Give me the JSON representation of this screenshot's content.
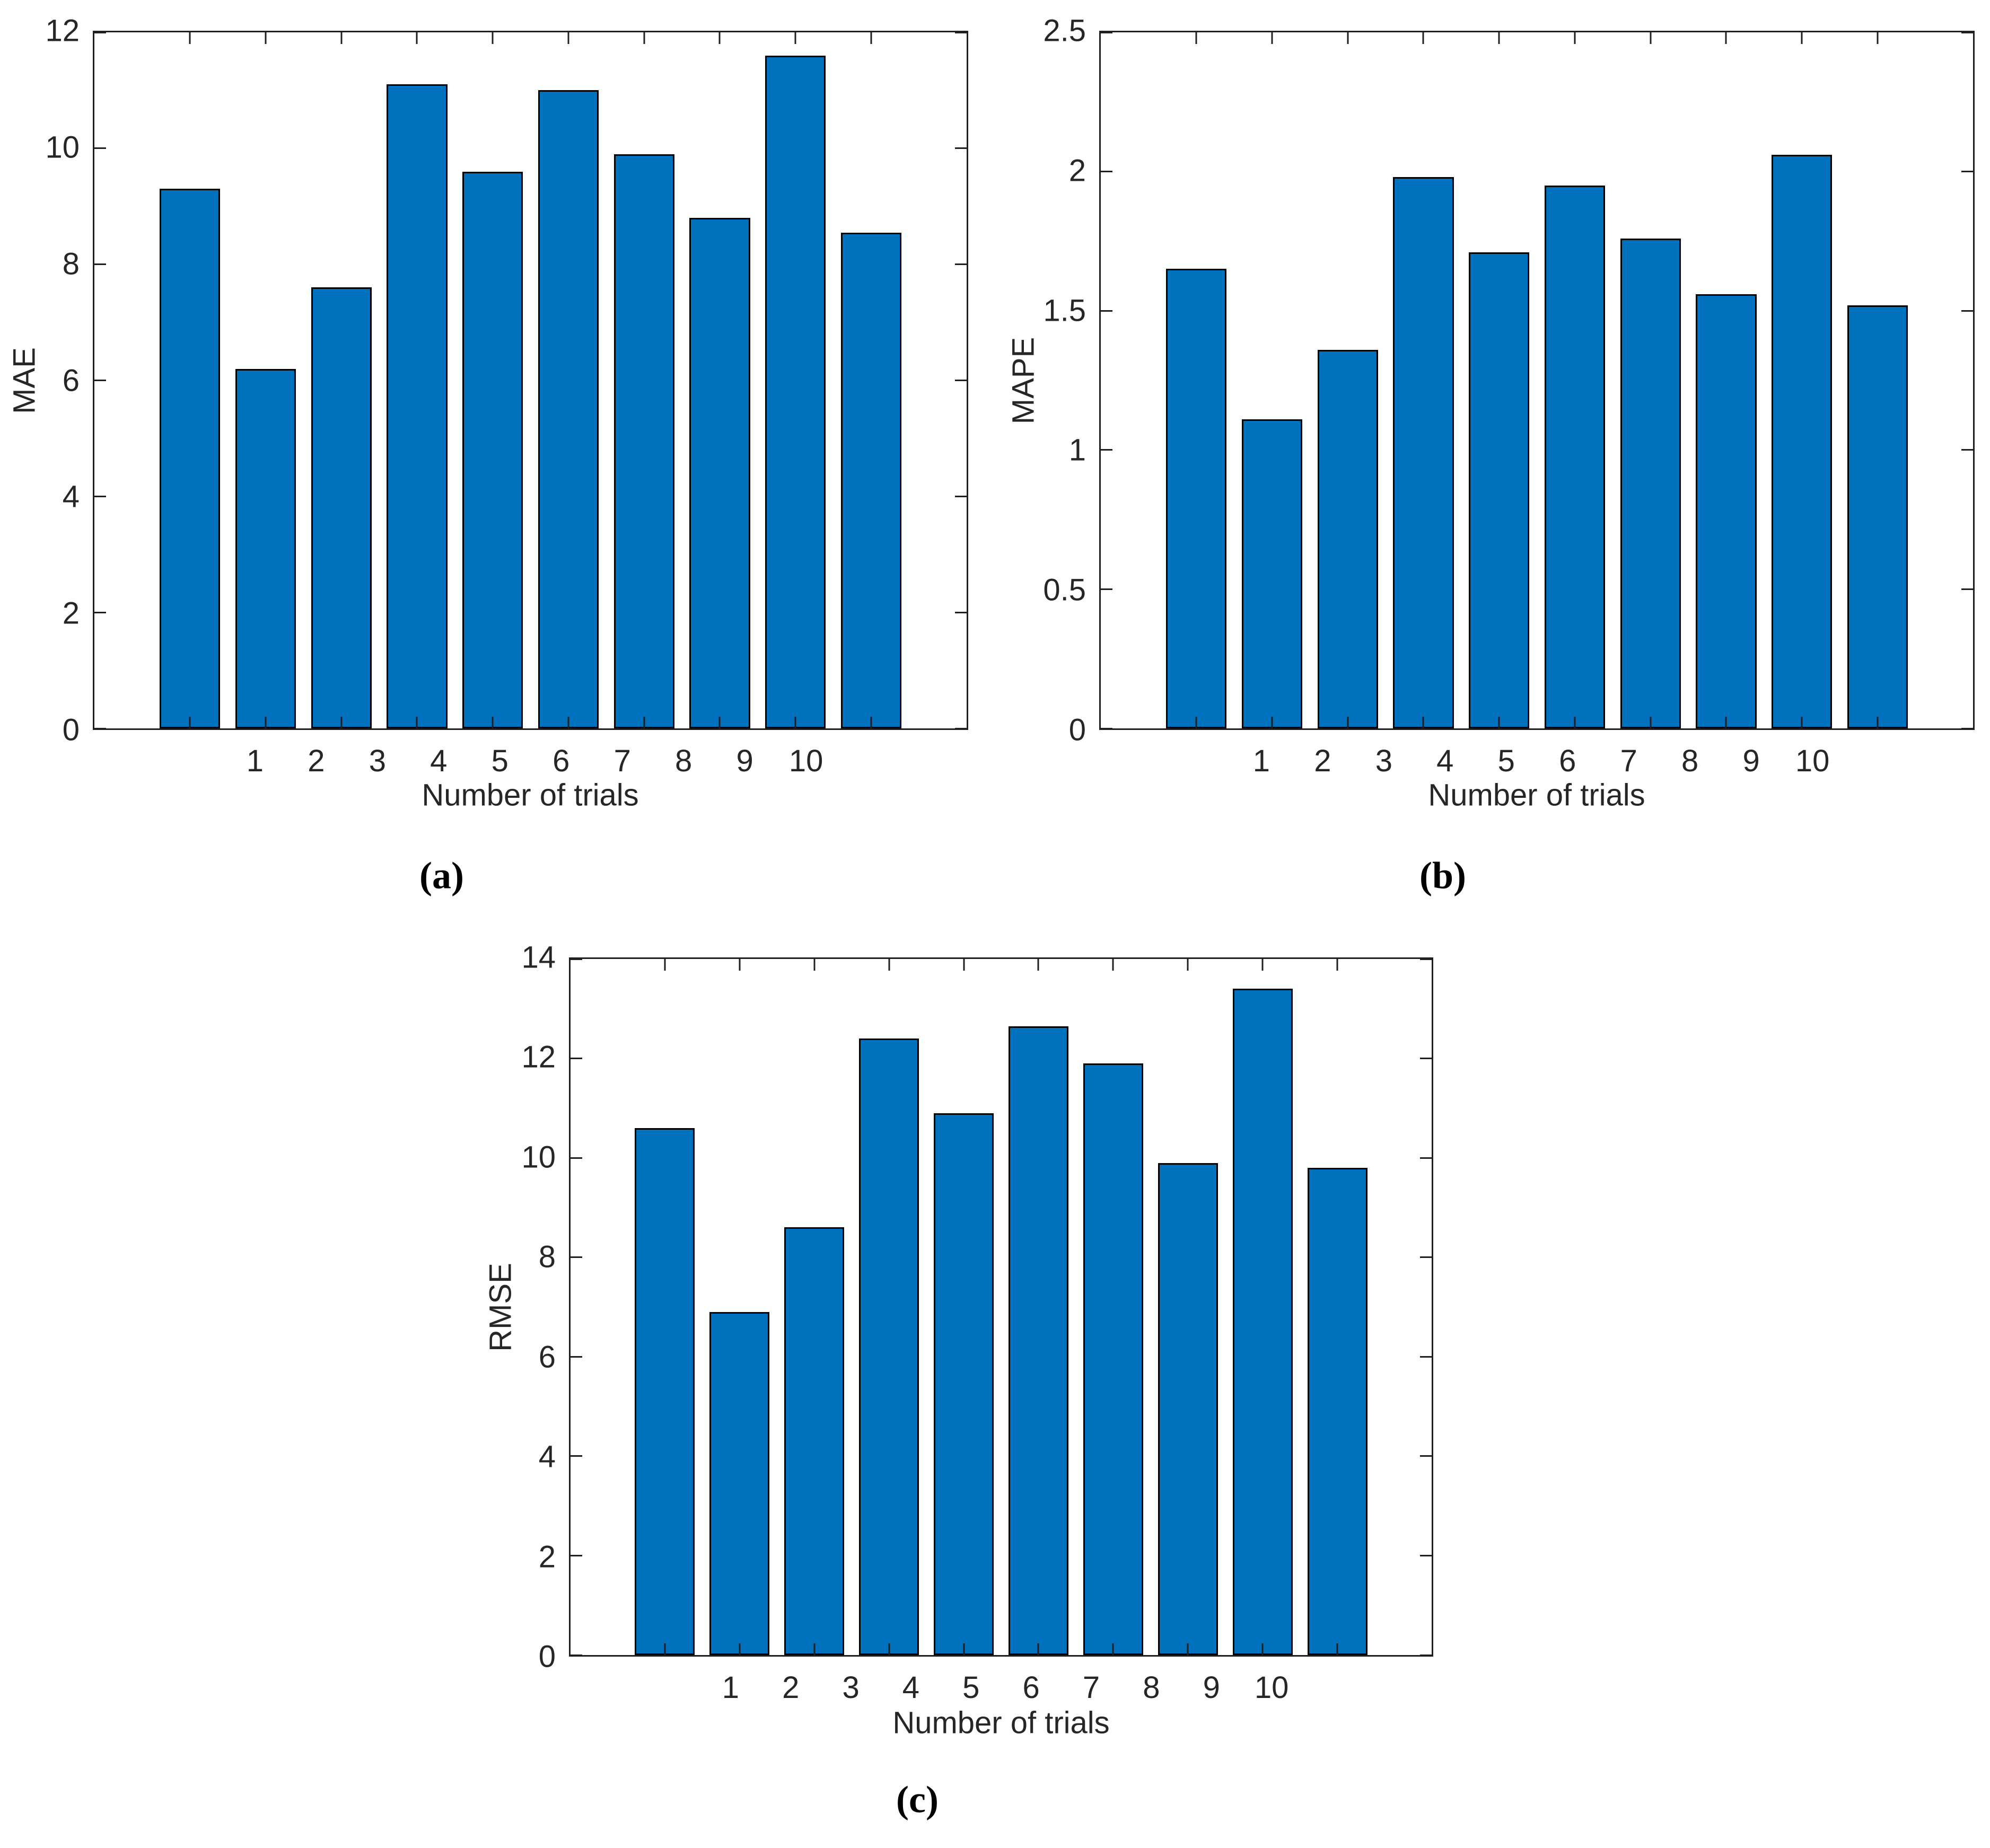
{
  "figure": {
    "background_color": "#ffffff",
    "bar_fill_color": "#0072BD",
    "bar_edge_color": "#000000",
    "axis_color": "#1f1f1f",
    "text_color": "#262626"
  },
  "chart_data": [
    {
      "type": "bar",
      "panel": "a",
      "caption": "(a)",
      "title": "",
      "xlabel": "Number of trials",
      "ylabel": "MAE",
      "categories": [
        "1",
        "2",
        "3",
        "4",
        "5",
        "6",
        "7",
        "8",
        "9",
        "10"
      ],
      "values": [
        9.3,
        6.2,
        7.6,
        11.1,
        9.6,
        11.0,
        9.9,
        8.8,
        11.6,
        8.55
      ],
      "ylim": [
        0,
        12
      ],
      "yticks": [
        0,
        2,
        4,
        6,
        8,
        10,
        12
      ],
      "grid": false,
      "legend": null,
      "bar_width_fraction": 0.8
    },
    {
      "type": "bar",
      "panel": "b",
      "caption": "(b)",
      "title": "",
      "xlabel": "Number of trials",
      "ylabel": "MAPE",
      "categories": [
        "1",
        "2",
        "3",
        "4",
        "5",
        "6",
        "7",
        "8",
        "9",
        "10"
      ],
      "values": [
        1.65,
        1.11,
        1.36,
        1.98,
        1.71,
        1.95,
        1.76,
        1.56,
        2.06,
        1.52
      ],
      "ylim": [
        0,
        2.5
      ],
      "yticks": [
        0,
        0.5,
        1,
        1.5,
        2,
        2.5
      ],
      "grid": false,
      "legend": null,
      "bar_width_fraction": 0.8
    },
    {
      "type": "bar",
      "panel": "c",
      "caption": "(c)",
      "title": "",
      "xlabel": "Number of trials",
      "ylabel": "RMSE",
      "categories": [
        "1",
        "2",
        "3",
        "4",
        "5",
        "6",
        "7",
        "8",
        "9",
        "10"
      ],
      "values": [
        10.6,
        6.9,
        8.6,
        12.4,
        10.9,
        12.65,
        11.9,
        9.9,
        13.4,
        9.8
      ],
      "ylim": [
        0,
        14
      ],
      "yticks": [
        0,
        2,
        4,
        6,
        8,
        10,
        12,
        14
      ],
      "grid": false,
      "legend": null,
      "bar_width_fraction": 0.8
    }
  ]
}
